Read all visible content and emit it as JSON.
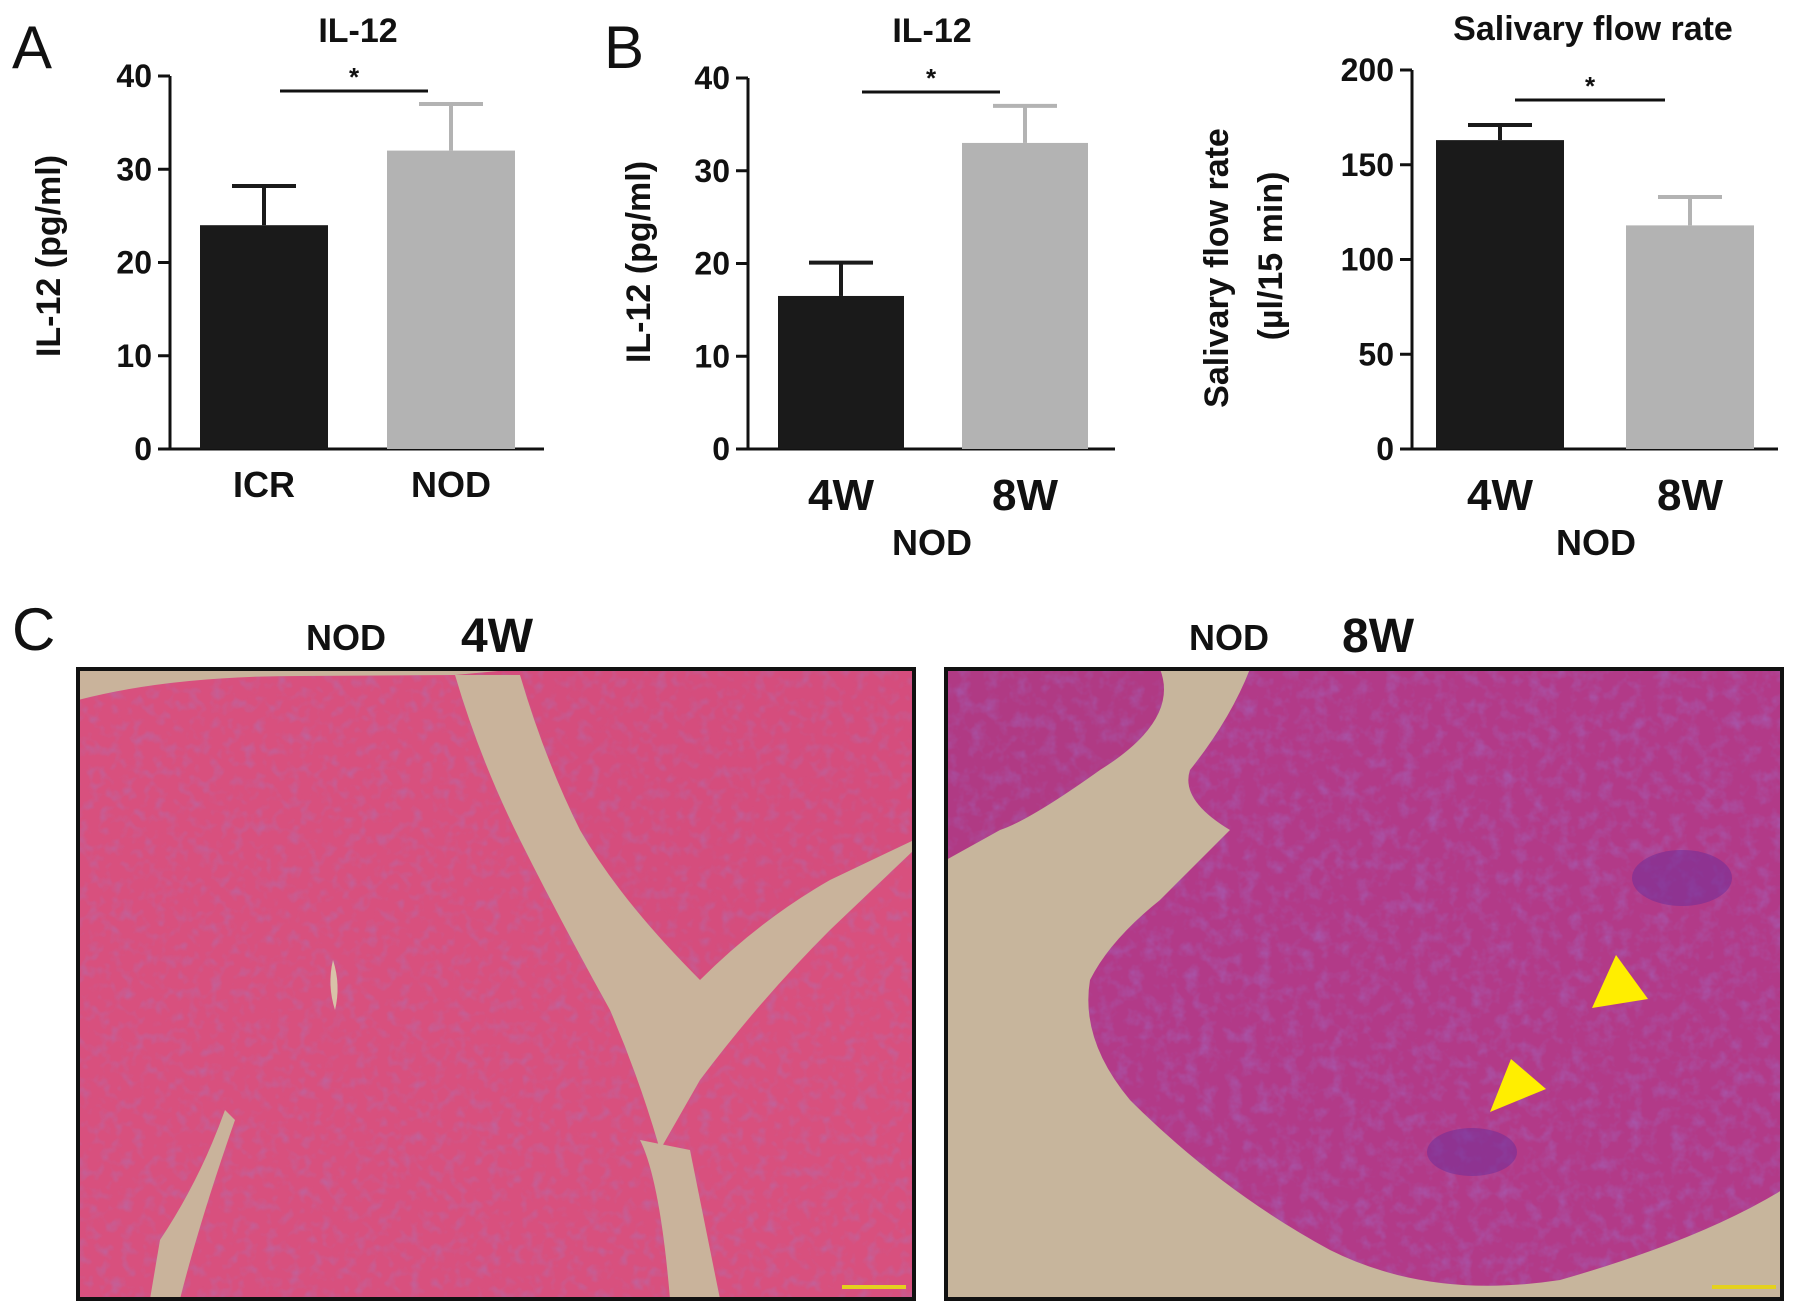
{
  "figure": {
    "panel_labels": [
      "A",
      "B",
      "C"
    ]
  },
  "chart_data": [
    {
      "type": "bar",
      "panel": "A",
      "title": "IL-12",
      "ylabel": "IL-12 (pg/ml)",
      "xlabel": "",
      "categories": [
        "ICR",
        "NOD"
      ],
      "values": [
        24,
        32
      ],
      "errors": [
        4.2,
        5
      ],
      "colors": [
        "#1a1a1a",
        "#b3b3b3"
      ],
      "ylim": [
        0,
        40
      ],
      "yticks": [
        0,
        10,
        20,
        30,
        40
      ],
      "significance": "*"
    },
    {
      "type": "bar",
      "panel": "B",
      "title": "IL-12",
      "ylabel": "IL-12 (pg/ml)",
      "xlabel": "NOD",
      "categories": [
        "4W",
        "8W"
      ],
      "values": [
        16.5,
        33
      ],
      "errors": [
        3.6,
        4
      ],
      "colors": [
        "#1a1a1a",
        "#b3b3b3"
      ],
      "ylim": [
        0,
        40
      ],
      "yticks": [
        0,
        10,
        20,
        30,
        40
      ],
      "significance": "*"
    },
    {
      "type": "bar",
      "panel": "B",
      "title": "Salivary flow rate",
      "ylabel": [
        "Salivary flow rate",
        "(µl/15 min)"
      ],
      "xlabel": "NOD",
      "categories": [
        "4W",
        "8W"
      ],
      "values": [
        163,
        118
      ],
      "errors": [
        8,
        15
      ],
      "colors": [
        "#1a1a1a",
        "#b3b3b3"
      ],
      "ylim": [
        0,
        200
      ],
      "yticks": [
        0,
        50,
        100,
        150,
        200
      ],
      "significance": "*"
    }
  ],
  "histology": [
    {
      "group": "NOD",
      "age": "4W",
      "stain_color": "#d44a7c",
      "arrowheads": 0
    },
    {
      "group": "NOD",
      "age": "8W",
      "stain_color": "#b53a86",
      "arrowheads": 2,
      "arrow_color": "#ffee00"
    }
  ]
}
